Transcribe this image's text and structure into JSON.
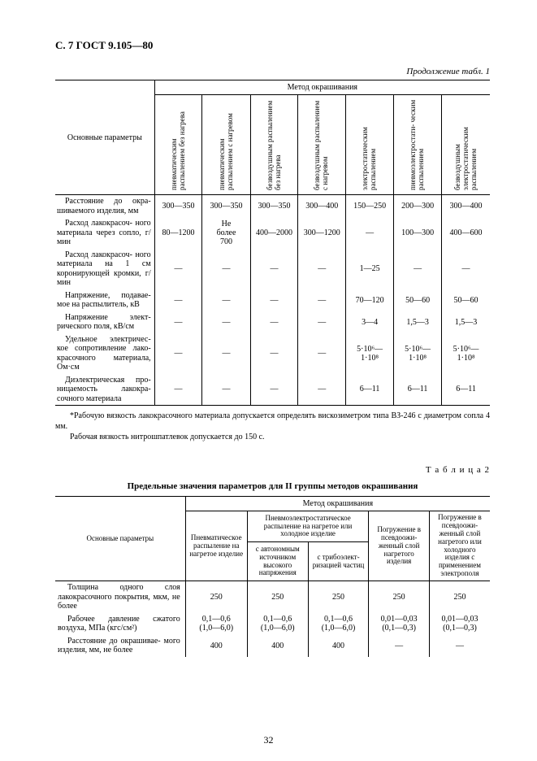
{
  "page_header": "С. 7 ГОСТ 9.105—80",
  "cont_label": "Продолжение табл. 1",
  "t1": {
    "method_label": "Метод окрашивания",
    "param_label": "Основные параметры",
    "cols": [
      "пневматическим распылением без нагрева",
      "пневматическим распылением с нагревом",
      "безвоздушным распылением без нагрева",
      "безвоздушным распылением с нагревом",
      "электростатическим распылением",
      "пневмоэлектростати- ческим распылением",
      "безвоздушным электростатическим распылением"
    ],
    "rows": [
      {
        "label": "Расстояние до окра- шиваемого изделия, мм",
        "v": [
          "300—350",
          "300—350",
          "300—350",
          "300—400",
          "150—250",
          "200—300",
          "300—400"
        ]
      },
      {
        "label": "Расход лакокрасоч- ного материала через сопло, г/мин",
        "v": [
          "80—1200",
          "Не более 700",
          "400—2000",
          "300—1200",
          "—",
          "100—300",
          "400—600"
        ]
      },
      {
        "label": "Расход лакокрасоч- ного материала на 1 см коронирующей кромки, г/мин",
        "v": [
          "—",
          "—",
          "—",
          "—",
          "1—25",
          "—",
          "—"
        ]
      },
      {
        "label": "Напряжение, подавае- мое на распылитель, кВ",
        "v": [
          "—",
          "—",
          "—",
          "—",
          "70—120",
          "50—60",
          "50—60"
        ]
      },
      {
        "label": "Напряжение элект- рического поля, кВ/см",
        "v": [
          "—",
          "—",
          "—",
          "—",
          "3—4",
          "1,5—3",
          "1,5—3"
        ]
      },
      {
        "label": "Удельное электричес- кое сопротивление лако- красочного материала, Ом·см",
        "v": [
          "—",
          "—",
          "—",
          "—",
          "5·10⁶—1·10⁸",
          "5·10⁶—1·10⁸",
          "5·10⁶—1·10⁸"
        ]
      },
      {
        "label": "Диэлектрическая про- ницаемость лакокра- сочного материала",
        "v": [
          "—",
          "—",
          "—",
          "—",
          "6—11",
          "6—11",
          "6—11"
        ]
      }
    ]
  },
  "footnote_star": "*Рабочую вязкость лакокрасочного материала допускается определять вискозиметром типа ВЗ-246 с диаметром сопла 4 мм.",
  "footnote_plain": "Рабочая вязкость нитрошпатлевок допускается до 150 с.",
  "t2_label": "Т а б л и ц а 2",
  "t2_title": "Предельные значения параметров для II группы методов окрашивания",
  "t2": {
    "method_label": "Метод окрашивания",
    "param_label": "Основные параметры",
    "h_pneum": "Пневматическое распыление на нагретое изделие",
    "h_pneumo_el": "Пневмоэлектростатическое распыление на нагретое или холодное изделие",
    "h_auto": "с автономным источником высокого напряжения",
    "h_tribo": "с трибоэлект- ризацией частиц",
    "h_dip": "Погружение в псевдоожи- женный слой нагретого изделия",
    "h_dip_ep": "Погружение в псевдоожи- женный слой нагретого или холодного изделия с применением электрополя",
    "rows": [
      {
        "label": "Толщина одного слоя лакокрасочного покрытия, мкм, не более",
        "v": [
          "250",
          "250",
          "250",
          "250",
          "250"
        ]
      },
      {
        "label": "Рабочее давление сжатого воздуха, МПа (кгс/см²)",
        "v": [
          "0,1—0,6 (1,0—6,0)",
          "0,1—0,6 (1,0—6,0)",
          "0,1—0,6 (1,0—6,0)",
          "0,01—0,03 (0,1—0,3)",
          "0,01—0,03 (0,1—0,3)"
        ]
      },
      {
        "label": "Расстояние до окрашивае- мого изделия, мм, не более",
        "v": [
          "400",
          "400",
          "400",
          "—",
          "—"
        ]
      }
    ]
  },
  "page_num": "32"
}
